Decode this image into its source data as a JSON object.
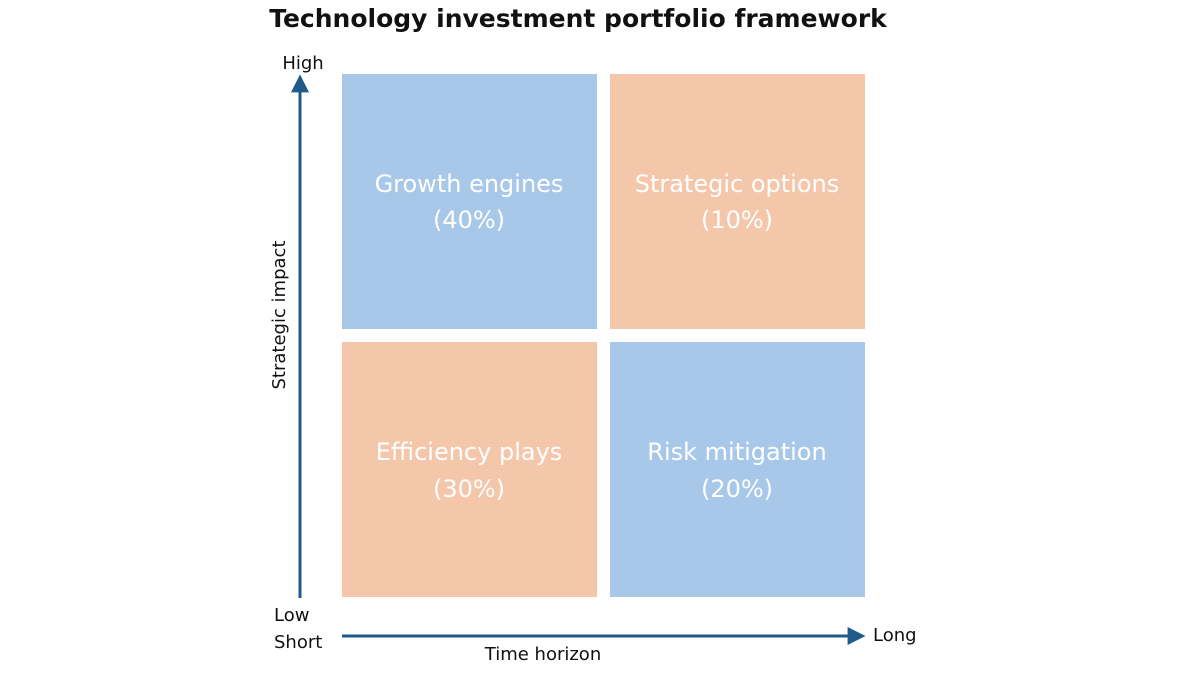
{
  "title": "Technology investment portfolio framework",
  "y_axis": {
    "label": "Strategic impact",
    "high": "High",
    "low": "Low"
  },
  "x_axis": {
    "label": "Time horizon",
    "short": "Short",
    "long": "Long"
  },
  "quadrants": [
    {
      "name": "Growth engines",
      "share": "(40%)"
    },
    {
      "name": "Strategic options",
      "share": "(10%)"
    },
    {
      "name": "Efficiency plays",
      "share": "(30%)"
    },
    {
      "name": "Risk mitigation",
      "share": "(20%)"
    }
  ]
}
